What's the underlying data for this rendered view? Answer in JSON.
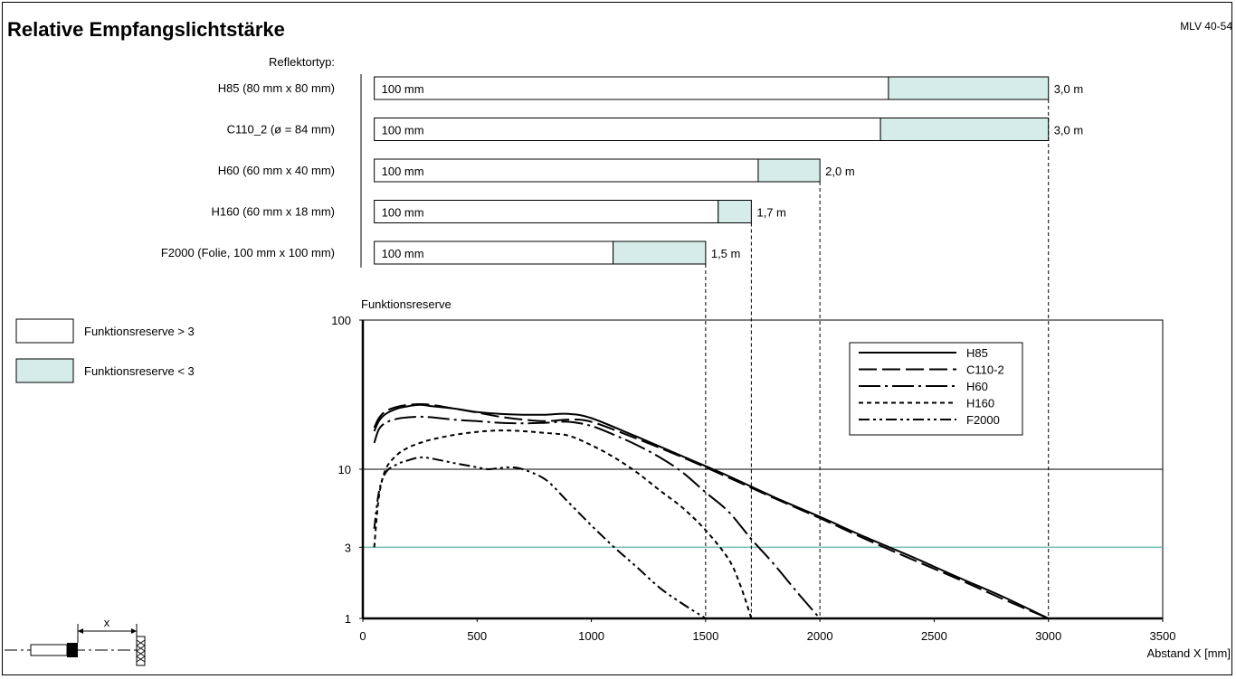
{
  "title": "Relative Empfangslichtstärke",
  "model": "MLV 40-54",
  "reflector_header": "Reflektortyp:",
  "colors": {
    "reserve_high": "#ffffff",
    "reserve_low": "#d5ece8",
    "line3": "#5fb7a8"
  },
  "legend_boxes": [
    {
      "label": "Funktionsreserve > 3",
      "color": "#ffffff"
    },
    {
      "label": "Funktionsreserve < 3",
      "color": "#d5ece8"
    }
  ],
  "reflectors": [
    {
      "name": "H85 (80 mm x 80 mm)",
      "min_label": "100 mm",
      "reserve3_mm": 2300,
      "max_mm": 3000,
      "max_label": "3,0 m"
    },
    {
      "name": "C110_2 (ø = 84 mm)",
      "min_label": "100 mm",
      "reserve3_mm": 2265,
      "max_mm": 3000,
      "max_label": "3,0 m"
    },
    {
      "name": "H60 (60 mm x 40 mm)",
      "min_label": "100 mm",
      "reserve3_mm": 1730,
      "max_mm": 2000,
      "max_label": "2,0 m"
    },
    {
      "name": "H160 (60 mm x 18 mm)",
      "min_label": "100 mm",
      "reserve3_mm": 1555,
      "max_mm": 1700,
      "max_label": "1,7 m"
    },
    {
      "name": "F2000 (Folie, 100 mm x 100 mm)",
      "min_label": "100 mm",
      "reserve3_mm": 1095,
      "max_mm": 1500,
      "max_label": "1,5 m"
    }
  ],
  "chart_data": {
    "type": "line",
    "ylabel": "Funktionsreserve",
    "xlabel": "Abstand X [mm]",
    "xlim": [
      0,
      3500
    ],
    "ylim": [
      1,
      100
    ],
    "y_scale": "log",
    "x_ticks": [
      0,
      500,
      1000,
      1500,
      2000,
      2500,
      3000,
      3500
    ],
    "y_ticks": [
      1,
      3,
      10,
      100
    ],
    "y_tick_labels": [
      "1",
      "3",
      "10",
      "100"
    ],
    "threshold_line": 3,
    "legend_position": "top-right",
    "series": [
      {
        "name": "H85",
        "dash": "solid",
        "x": [
          50,
          70,
          100,
          150,
          200,
          250,
          300,
          400,
          500,
          600,
          700,
          800,
          900,
          1000,
          1200,
          1400,
          1600,
          1800,
          2000,
          2200,
          2400,
          2600,
          2800,
          3000
        ],
        "y": [
          18,
          21,
          23.5,
          25.5,
          26.5,
          27,
          26.5,
          25.5,
          24.2,
          23.5,
          23.2,
          23.2,
          23.5,
          22,
          16.5,
          12.2,
          9.0,
          6.5,
          4.8,
          3.5,
          2.6,
          1.9,
          1.4,
          1.0
        ]
      },
      {
        "name": "C110-2",
        "dash": "long-dash",
        "x": [
          50,
          70,
          100,
          150,
          200,
          250,
          300,
          400,
          500,
          600,
          700,
          800,
          900,
          1000,
          1200,
          1400,
          1600,
          1800,
          2000,
          2200,
          2400,
          2600,
          2800,
          3000
        ],
        "y": [
          19,
          22,
          24.5,
          26.2,
          27,
          27.3,
          27,
          25.5,
          24,
          22.5,
          21.5,
          21,
          21.5,
          20.8,
          16,
          12,
          8.8,
          6.4,
          4.7,
          3.4,
          2.5,
          1.85,
          1.35,
          1.0
        ]
      },
      {
        "name": "H60",
        "dash": "dash-dot",
        "x": [
          50,
          70,
          100,
          150,
          200,
          250,
          300,
          400,
          500,
          600,
          700,
          800,
          900,
          1000,
          1100,
          1200,
          1300,
          1400,
          1500,
          1600,
          1700,
          1800,
          1900,
          2000
        ],
        "y": [
          15,
          18.5,
          20.5,
          21.8,
          22.3,
          22.5,
          22.3,
          21.5,
          21,
          20.5,
          20.3,
          20.5,
          20.8,
          19.5,
          17,
          14.5,
          12,
          9.5,
          7.0,
          5.2,
          3.4,
          2.3,
          1.5,
          1.0
        ]
      },
      {
        "name": "H160",
        "dash": "short-dash",
        "x": [
          50,
          70,
          100,
          150,
          200,
          250,
          300,
          400,
          500,
          600,
          700,
          800,
          900,
          1000,
          1100,
          1200,
          1300,
          1400,
          1500,
          1600,
          1650,
          1700
        ],
        "y": [
          3.0,
          6.5,
          10,
          12.5,
          14,
          15,
          15.8,
          17.0,
          17.8,
          18.2,
          18.0,
          17.5,
          16.8,
          14.5,
          12.0,
          9.5,
          7.2,
          5.5,
          3.9,
          2.5,
          1.7,
          1.0
        ]
      },
      {
        "name": "F2000",
        "dash": "dash-dot-dot",
        "x": [
          50,
          70,
          100,
          150,
          200,
          250,
          300,
          400,
          500,
          550,
          600,
          650,
          700,
          800,
          900,
          1000,
          1100,
          1200,
          1300,
          1400,
          1500
        ],
        "y": [
          4.0,
          7.0,
          9.5,
          10.8,
          11.5,
          12.0,
          11.8,
          11.0,
          10.3,
          10.0,
          10.2,
          10.3,
          10.0,
          8.5,
          6.0,
          4.2,
          3.0,
          2.2,
          1.6,
          1.25,
          1.0
        ]
      }
    ]
  }
}
